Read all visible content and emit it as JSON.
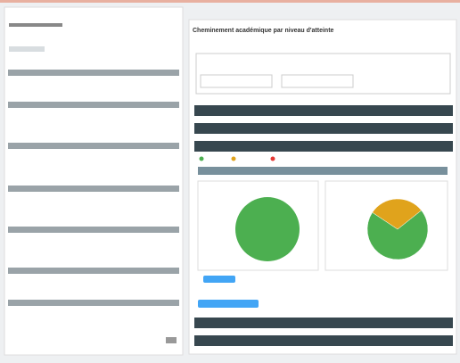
{
  "header": {
    "title": "Cheminement académique par niveau d'atteinte"
  },
  "pies": [
    {
      "values": [
        100
      ],
      "colors": [
        "#4caf50"
      ]
    },
    {
      "values": [
        70,
        30
      ],
      "colors": [
        "#4caf50",
        "#e0a31c"
      ]
    }
  ]
}
